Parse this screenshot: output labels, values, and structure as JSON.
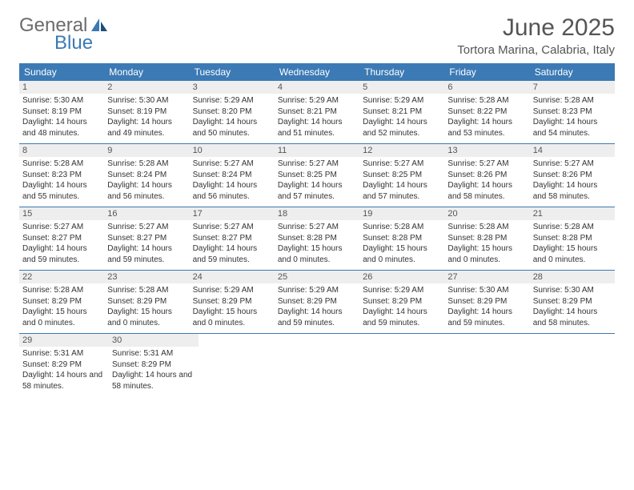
{
  "logo": {
    "text1": "General",
    "text2": "Blue"
  },
  "title": "June 2025",
  "location": "Tortora Marina, Calabria, Italy",
  "colors": {
    "header_bg": "#3b7ab5",
    "daynum_bg": "#eeeeee"
  },
  "day_names": [
    "Sunday",
    "Monday",
    "Tuesday",
    "Wednesday",
    "Thursday",
    "Friday",
    "Saturday"
  ],
  "weeks": [
    [
      {
        "n": "1",
        "sr": "5:30 AM",
        "ss": "8:19 PM",
        "dl": "14 hours and 48 minutes."
      },
      {
        "n": "2",
        "sr": "5:30 AM",
        "ss": "8:19 PM",
        "dl": "14 hours and 49 minutes."
      },
      {
        "n": "3",
        "sr": "5:29 AM",
        "ss": "8:20 PM",
        "dl": "14 hours and 50 minutes."
      },
      {
        "n": "4",
        "sr": "5:29 AM",
        "ss": "8:21 PM",
        "dl": "14 hours and 51 minutes."
      },
      {
        "n": "5",
        "sr": "5:29 AM",
        "ss": "8:21 PM",
        "dl": "14 hours and 52 minutes."
      },
      {
        "n": "6",
        "sr": "5:28 AM",
        "ss": "8:22 PM",
        "dl": "14 hours and 53 minutes."
      },
      {
        "n": "7",
        "sr": "5:28 AM",
        "ss": "8:23 PM",
        "dl": "14 hours and 54 minutes."
      }
    ],
    [
      {
        "n": "8",
        "sr": "5:28 AM",
        "ss": "8:23 PM",
        "dl": "14 hours and 55 minutes."
      },
      {
        "n": "9",
        "sr": "5:28 AM",
        "ss": "8:24 PM",
        "dl": "14 hours and 56 minutes."
      },
      {
        "n": "10",
        "sr": "5:27 AM",
        "ss": "8:24 PM",
        "dl": "14 hours and 56 minutes."
      },
      {
        "n": "11",
        "sr": "5:27 AM",
        "ss": "8:25 PM",
        "dl": "14 hours and 57 minutes."
      },
      {
        "n": "12",
        "sr": "5:27 AM",
        "ss": "8:25 PM",
        "dl": "14 hours and 57 minutes."
      },
      {
        "n": "13",
        "sr": "5:27 AM",
        "ss": "8:26 PM",
        "dl": "14 hours and 58 minutes."
      },
      {
        "n": "14",
        "sr": "5:27 AM",
        "ss": "8:26 PM",
        "dl": "14 hours and 58 minutes."
      }
    ],
    [
      {
        "n": "15",
        "sr": "5:27 AM",
        "ss": "8:27 PM",
        "dl": "14 hours and 59 minutes."
      },
      {
        "n": "16",
        "sr": "5:27 AM",
        "ss": "8:27 PM",
        "dl": "14 hours and 59 minutes."
      },
      {
        "n": "17",
        "sr": "5:27 AM",
        "ss": "8:27 PM",
        "dl": "14 hours and 59 minutes."
      },
      {
        "n": "18",
        "sr": "5:27 AM",
        "ss": "8:28 PM",
        "dl": "15 hours and 0 minutes."
      },
      {
        "n": "19",
        "sr": "5:28 AM",
        "ss": "8:28 PM",
        "dl": "15 hours and 0 minutes."
      },
      {
        "n": "20",
        "sr": "5:28 AM",
        "ss": "8:28 PM",
        "dl": "15 hours and 0 minutes."
      },
      {
        "n": "21",
        "sr": "5:28 AM",
        "ss": "8:28 PM",
        "dl": "15 hours and 0 minutes."
      }
    ],
    [
      {
        "n": "22",
        "sr": "5:28 AM",
        "ss": "8:29 PM",
        "dl": "15 hours and 0 minutes."
      },
      {
        "n": "23",
        "sr": "5:28 AM",
        "ss": "8:29 PM",
        "dl": "15 hours and 0 minutes."
      },
      {
        "n": "24",
        "sr": "5:29 AM",
        "ss": "8:29 PM",
        "dl": "15 hours and 0 minutes."
      },
      {
        "n": "25",
        "sr": "5:29 AM",
        "ss": "8:29 PM",
        "dl": "14 hours and 59 minutes."
      },
      {
        "n": "26",
        "sr": "5:29 AM",
        "ss": "8:29 PM",
        "dl": "14 hours and 59 minutes."
      },
      {
        "n": "27",
        "sr": "5:30 AM",
        "ss": "8:29 PM",
        "dl": "14 hours and 59 minutes."
      },
      {
        "n": "28",
        "sr": "5:30 AM",
        "ss": "8:29 PM",
        "dl": "14 hours and 58 minutes."
      }
    ],
    [
      {
        "n": "29",
        "sr": "5:31 AM",
        "ss": "8:29 PM",
        "dl": "14 hours and 58 minutes."
      },
      {
        "n": "30",
        "sr": "5:31 AM",
        "ss": "8:29 PM",
        "dl": "14 hours and 58 minutes."
      },
      null,
      null,
      null,
      null,
      null
    ]
  ],
  "labels": {
    "sunrise": "Sunrise: ",
    "sunset": "Sunset: ",
    "daylight": "Daylight: "
  }
}
